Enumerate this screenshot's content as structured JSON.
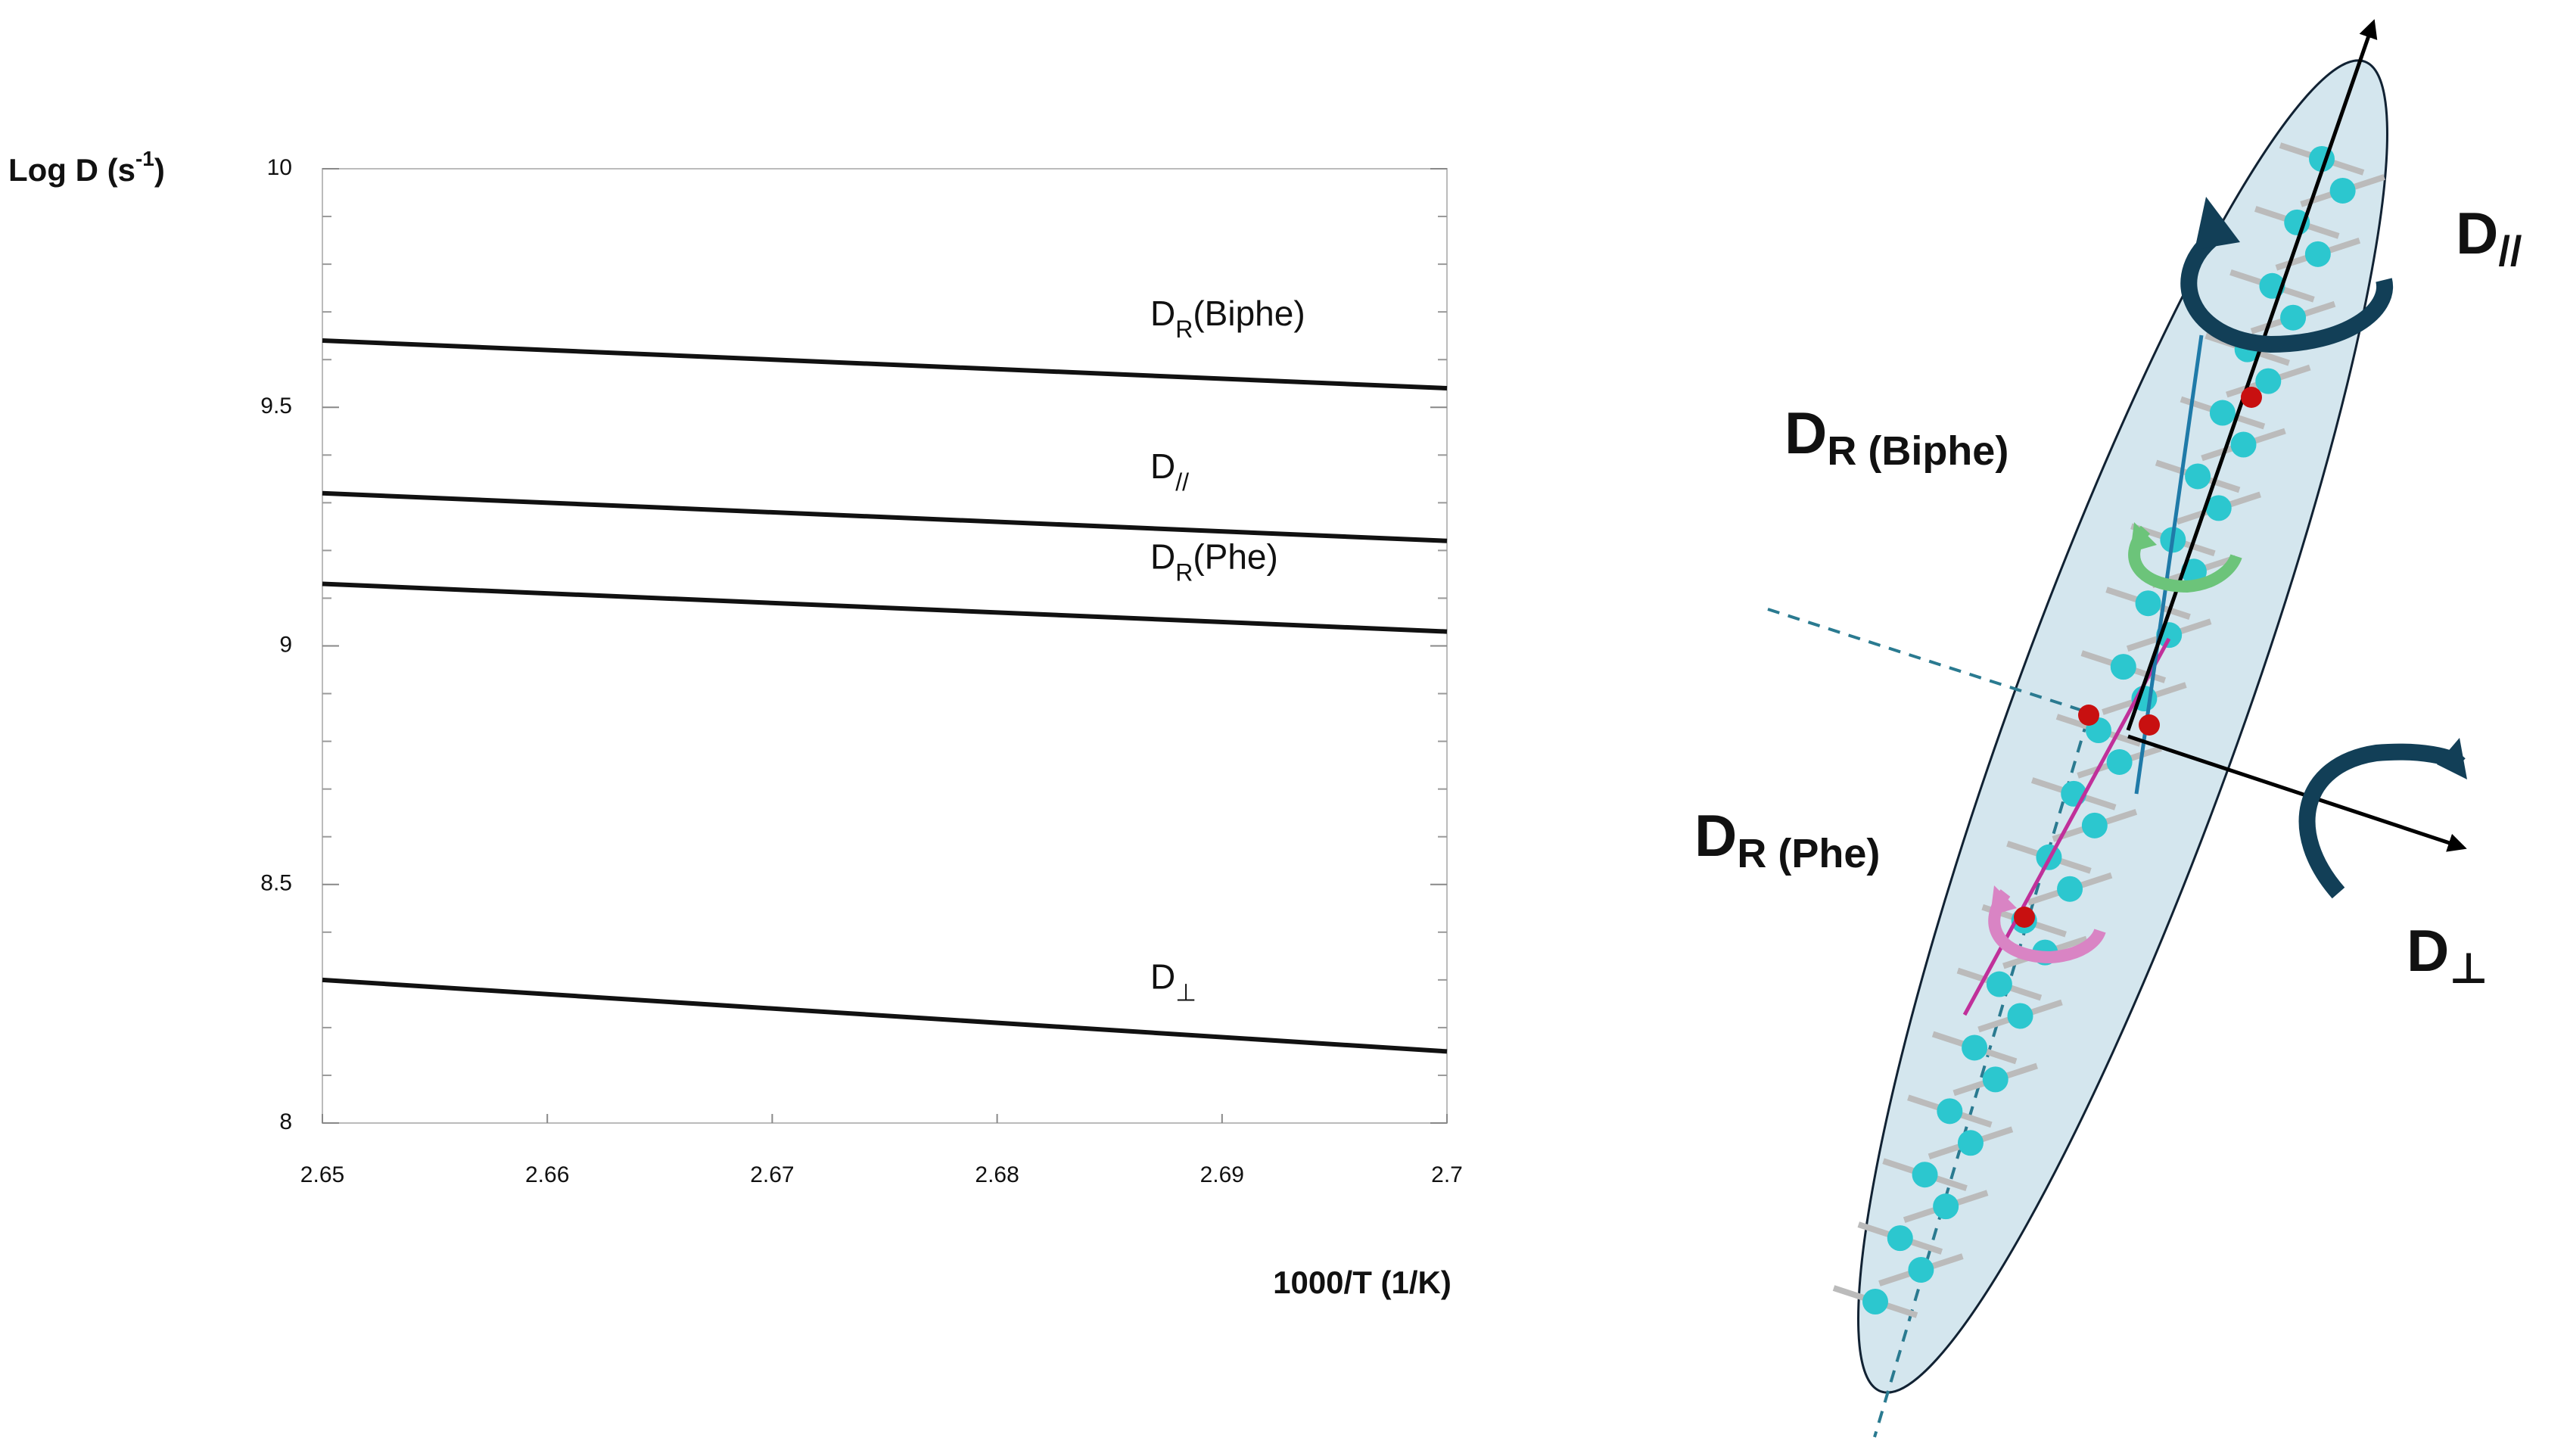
{
  "chart_data": {
    "type": "line",
    "ylabel": {
      "text": "Log D (s",
      "sup": "-1",
      "end": ")"
    },
    "xlabel": "1000/T (1/K)",
    "x": [
      2.65,
      2.7
    ],
    "series": [
      {
        "name": "D",
        "sub": "R",
        "suffix": "(Biphe)",
        "color": "#111111",
        "values": [
          9.64,
          9.54
        ]
      },
      {
        "name": "D",
        "sub": "//",
        "suffix": "",
        "color": "#111111",
        "values": [
          9.32,
          9.22
        ]
      },
      {
        "name": "D",
        "sub": "R",
        "suffix": "(Phe)",
        "color": "#111111",
        "values": [
          9.13,
          9.03
        ]
      },
      {
        "name": "D",
        "sub": "⊥",
        "suffix": "",
        "color": "#111111",
        "values": [
          8.3,
          8.15
        ]
      }
    ],
    "xlim": [
      2.65,
      2.7
    ],
    "xticks": [
      2.65,
      2.66,
      2.67,
      2.68,
      2.69,
      2.7
    ],
    "ylim": [
      8,
      10
    ],
    "yticks": [
      8,
      8.5,
      9,
      9.5,
      10
    ],
    "yminorticks": [
      8.1,
      8.2,
      8.3,
      8.4,
      8.6,
      8.7,
      8.8,
      8.9,
      9.1,
      9.2,
      9.3,
      9.4,
      9.6,
      9.7,
      9.8,
      9.9
    ],
    "grid": false
  },
  "diagram": {
    "labels": [
      {
        "main": "D",
        "sub": "//"
      },
      {
        "main": "D",
        "sub": "R (Biphe)"
      },
      {
        "main": "D",
        "sub": "R (Phe)"
      },
      {
        "main": "D",
        "sub": "⊥"
      }
    ]
  }
}
